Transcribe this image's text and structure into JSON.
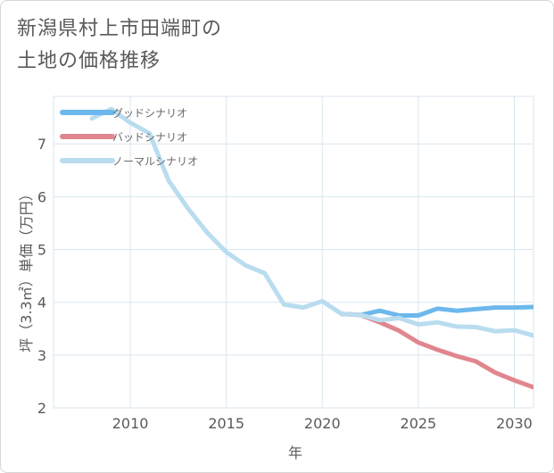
{
  "title_lines": [
    "新潟県村上市田端町の",
    "土地の価格推移"
  ],
  "chart_data": {
    "type": "line",
    "xlabel": "年",
    "ylabel": "坪（3.3㎡）単価（万円）",
    "xlim": [
      2006,
      2031
    ],
    "ylim": [
      2,
      7.9
    ],
    "xticks": [
      2010,
      2015,
      2020,
      2025,
      2030
    ],
    "yticks": [
      2,
      3,
      4,
      5,
      6,
      7
    ],
    "grid": true,
    "legend_position": "top-left",
    "series": [
      {
        "name": "グッドシナリオ",
        "color": "#6cb8ec",
        "x": [
          2021,
          2022,
          2023,
          2024,
          2025,
          2026,
          2027,
          2028,
          2029,
          2030,
          2031
        ],
        "y": [
          3.78,
          3.76,
          3.84,
          3.75,
          3.75,
          3.88,
          3.84,
          3.87,
          3.9,
          3.9,
          3.91
        ]
      },
      {
        "name": "バッドシナリオ",
        "color": "#e0868e",
        "x": [
          2021,
          2022,
          2023,
          2024,
          2025,
          2026,
          2027,
          2028,
          2029,
          2030,
          2031
        ],
        "y": [
          3.78,
          3.76,
          3.62,
          3.46,
          3.24,
          3.1,
          2.98,
          2.88,
          2.67,
          2.52,
          2.39
        ]
      },
      {
        "name": "ノーマルシナリオ",
        "color": "#b9dcef",
        "x": [
          2008,
          2009,
          2010,
          2011,
          2012,
          2013,
          2014,
          2015,
          2016,
          2017,
          2018,
          2019,
          2020,
          2021,
          2022,
          2023,
          2024,
          2025,
          2026,
          2027,
          2028,
          2029,
          2030,
          2031
        ],
        "y": [
          7.48,
          7.66,
          7.4,
          7.2,
          6.3,
          5.78,
          5.32,
          4.95,
          4.7,
          4.55,
          3.96,
          3.9,
          4.02,
          3.78,
          3.76,
          3.66,
          3.7,
          3.58,
          3.62,
          3.54,
          3.53,
          3.45,
          3.47,
          3.37
        ]
      }
    ]
  }
}
